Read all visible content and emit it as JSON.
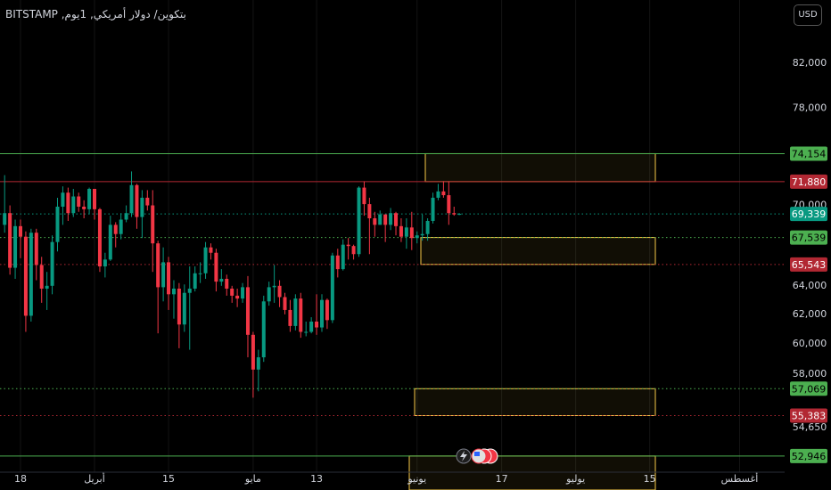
{
  "title": "بتكوين/ دولار أمريكي, 1يوم, BITSTAMP",
  "currency_button": "USD",
  "chart_data": {
    "type": "candlestick",
    "log_scale": true,
    "grid": true,
    "up_color": "#089981",
    "down_color": "#f23645",
    "ylim": [
      52000,
      88000
    ],
    "yticks": [
      {
        "value": 82000,
        "label": "82,000"
      },
      {
        "value": 78000,
        "label": "78,000"
      },
      {
        "value": 70000,
        "label": "70,000"
      },
      {
        "value": 64000,
        "label": "64,000"
      },
      {
        "value": 62000,
        "label": "62,000"
      },
      {
        "value": 60000,
        "label": "60,000"
      },
      {
        "value": 58000,
        "label": "58,000"
      },
      {
        "value": 54650,
        "label": "54,650"
      }
    ],
    "categories": [
      null,
      null,
      null,
      "18",
      null,
      null,
      null,
      null,
      null,
      null,
      null,
      null,
      null,
      null,
      null,
      null,
      null,
      "أبريل",
      null,
      null,
      null,
      null,
      null,
      null,
      null,
      null,
      null,
      null,
      null,
      null,
      null,
      "15",
      null,
      null,
      null,
      null,
      null,
      null,
      null,
      null,
      null,
      null,
      null,
      null,
      null,
      null,
      null,
      "مايو",
      null,
      null,
      null,
      null,
      null,
      null,
      null,
      null,
      null,
      null,
      null,
      "13",
      null,
      null,
      null,
      null,
      null,
      null,
      null,
      null,
      null,
      null,
      null,
      null,
      null,
      null,
      null,
      null,
      null,
      null,
      "يونيو",
      null,
      null,
      null,
      null,
      null,
      null,
      null,
      null,
      null,
      null,
      null,
      null,
      null,
      null,
      null,
      "17",
      null,
      null,
      null,
      null,
      null,
      null,
      null,
      null,
      null,
      null,
      null,
      null,
      null,
      "يوليو",
      null,
      null,
      null,
      null,
      null,
      null,
      null,
      null,
      null,
      null,
      null,
      null,
      null,
      "15",
      null,
      null,
      null,
      null,
      null,
      null,
      null,
      null,
      null,
      null,
      null,
      null,
      null,
      null,
      null,
      null,
      "أغسطس"
    ],
    "open": [
      68500,
      69400,
      65300,
      68400,
      67600,
      61900,
      67900,
      65500,
      63800,
      64000,
      67200,
      69900,
      71000,
      69400,
      70700,
      69900,
      69700,
      71300,
      69700,
      65400,
      65900,
      68500,
      67800,
      68900,
      69400,
      71600,
      69100,
      70600,
      70000,
      67100,
      63900,
      65700,
      63400,
      63800,
      61300,
      63500,
      63800,
      64900,
      64900,
      66800,
      66400,
      64300,
      64500,
      63800,
      63300,
      63100,
      63900,
      60600,
      58300,
      59100,
      62900,
      63900,
      64000,
      63200,
      62300,
      61200,
      63100,
      60800,
      60800,
      61500,
      61100,
      63000,
      61600,
      66200,
      65200,
      67000,
      66900,
      66300,
      71400,
      70100,
      69000,
      68500,
      69300,
      68500,
      69400,
      68400,
      67600,
      68300,
      67500,
      67700,
      67800,
      68800,
      70600,
      71100,
      70800,
      69400,
      69300,
      null,
      null,
      null,
      null,
      null,
      null,
      null,
      null,
      null,
      null,
      null,
      null,
      null,
      null,
      null,
      null,
      null,
      null,
      null,
      null,
      null,
      null,
      null,
      null,
      null,
      null,
      null,
      null,
      null,
      null,
      null,
      null,
      null,
      null,
      null,
      null,
      null,
      null,
      null,
      null,
      null,
      null,
      null,
      null,
      null,
      null,
      null,
      null,
      null,
      null,
      null,
      null,
      null
    ],
    "high": [
      72400,
      70000,
      68900,
      68900,
      68000,
      68200,
      68200,
      66100,
      65000,
      67700,
      70600,
      71500,
      71400,
      71300,
      71000,
      70400,
      71400,
      71300,
      69800,
      66400,
      69200,
      68700,
      69400,
      70000,
      72700,
      71700,
      71200,
      71200,
      71200,
      67300,
      66800,
      66100,
      64400,
      64200,
      64100,
      65400,
      65400,
      65700,
      67200,
      67100,
      66700,
      65200,
      64800,
      64000,
      63800,
      64200,
      64700,
      60800,
      59600,
      63300,
      64300,
      65500,
      64400,
      63500,
      63000,
      63400,
      63500,
      61500,
      61800,
      63400,
      63400,
      63100,
      66400,
      66700,
      67400,
      67500,
      67000,
      71500,
      71900,
      70600,
      69500,
      69600,
      69300,
      69800,
      69500,
      69000,
      69000,
      69500,
      68000,
      69300,
      69000,
      71000,
      71700,
      71900,
      71900,
      69900,
      69400,
      null,
      null,
      null,
      null,
      null,
      null,
      null,
      null,
      null,
      null,
      null,
      null,
      null,
      null,
      null,
      null,
      null,
      null,
      null,
      null,
      null,
      null,
      null,
      null,
      null,
      null,
      null,
      null,
      null,
      null,
      null,
      null,
      null,
      null,
      null,
      null,
      null,
      null,
      null,
      null,
      null,
      null,
      null,
      null,
      null,
      null,
      null,
      null,
      null,
      null,
      null,
      null,
      null
    ],
    "low": [
      67900,
      64800,
      64500,
      66000,
      60800,
      61500,
      64400,
      62800,
      62300,
      63400,
      66500,
      68500,
      68800,
      69100,
      69500,
      69000,
      69300,
      68900,
      65000,
      64600,
      65800,
      66800,
      67400,
      68700,
      69100,
      68200,
      67500,
      69600,
      65000,
      60700,
      62900,
      62300,
      61700,
      59700,
      60800,
      59600,
      63600,
      64200,
      64500,
      65900,
      63600,
      64000,
      63300,
      62800,
      62500,
      62800,
      59100,
      56500,
      56900,
      58800,
      62600,
      62800,
      62500,
      62000,
      60800,
      60900,
      60400,
      60500,
      60700,
      60600,
      60800,
      61000,
      61400,
      64600,
      65100,
      65900,
      65900,
      66100,
      69200,
      66300,
      67600,
      68500,
      67200,
      68100,
      67700,
      67200,
      66700,
      66600,
      67100,
      67300,
      67300,
      68600,
      70400,
      70600,
      68500,
      69200,
      69250,
      null,
      null,
      null,
      null,
      null,
      null,
      null,
      null,
      null,
      null,
      null,
      null,
      null,
      null,
      null,
      null,
      null,
      null,
      null,
      null,
      null,
      null,
      null,
      null,
      null,
      null,
      null,
      null,
      null,
      null,
      null,
      null,
      null,
      null,
      null,
      null,
      null,
      null,
      null,
      null,
      null,
      null,
      null,
      null,
      null,
      null,
      null,
      null,
      null,
      null,
      null,
      null,
      null
    ],
    "close": [
      69400,
      65300,
      68400,
      67600,
      61900,
      67900,
      65500,
      63800,
      64000,
      67200,
      69900,
      71000,
      69400,
      70700,
      69900,
      69700,
      71300,
      69700,
      65400,
      65900,
      68500,
      67800,
      68900,
      69400,
      71600,
      69100,
      70600,
      70000,
      67100,
      63900,
      65700,
      63400,
      63800,
      61300,
      63500,
      63800,
      64900,
      64900,
      66800,
      66400,
      64300,
      64500,
      63800,
      63300,
      63100,
      63900,
      60600,
      58300,
      59100,
      62900,
      63900,
      64000,
      63200,
      62300,
      61200,
      63100,
      60800,
      60800,
      61500,
      61100,
      63000,
      61600,
      66200,
      65200,
      67000,
      66900,
      66300,
      71400,
      70100,
      69000,
      68500,
      69300,
      68500,
      69400,
      68400,
      67600,
      68300,
      67500,
      67700,
      67800,
      68800,
      70600,
      71100,
      70800,
      69400,
      69300,
      69339,
      null,
      null,
      null,
      null,
      null,
      null,
      null,
      null,
      null,
      null,
      null,
      null,
      null,
      null,
      null,
      null,
      null,
      null,
      null,
      null,
      null,
      null,
      null,
      null,
      null,
      null,
      null,
      null,
      null,
      null,
      null,
      null,
      null,
      null,
      null,
      null,
      null,
      null,
      null,
      null,
      null,
      null,
      null,
      null,
      null,
      null,
      null,
      null,
      null,
      null,
      null,
      null,
      null
    ],
    "levels": [
      {
        "value": 74154,
        "label": "74,154",
        "color": "#4caf50",
        "text_color": "#000000",
        "dotted": false
      },
      {
        "value": 71880,
        "label": "71,880",
        "color": "#b22833",
        "text_color": "#ffffff",
        "dotted": false
      },
      {
        "value": 69339,
        "label": "69,339",
        "color": "#089981",
        "text_color": "#ffffff",
        "dotted": true
      },
      {
        "value": 67539,
        "label": "67,539",
        "color": "#4caf50",
        "text_color": "#000000",
        "dotted": true
      },
      {
        "value": 65543,
        "label": "65,543",
        "color": "#b22833",
        "text_color": "#ffffff",
        "dotted": true
      },
      {
        "value": 57069,
        "label": "57,069",
        "color": "#4caf50",
        "text_color": "#000000",
        "dotted": true
      },
      {
        "value": 55383,
        "label": "55,383",
        "color": "#b22833",
        "text_color": "#ffffff",
        "dotted": true
      },
      {
        "value": 52946,
        "label": "52,946",
        "color": "#4caf50",
        "text_color": "#000000",
        "dotted": false
      }
    ]
  }
}
